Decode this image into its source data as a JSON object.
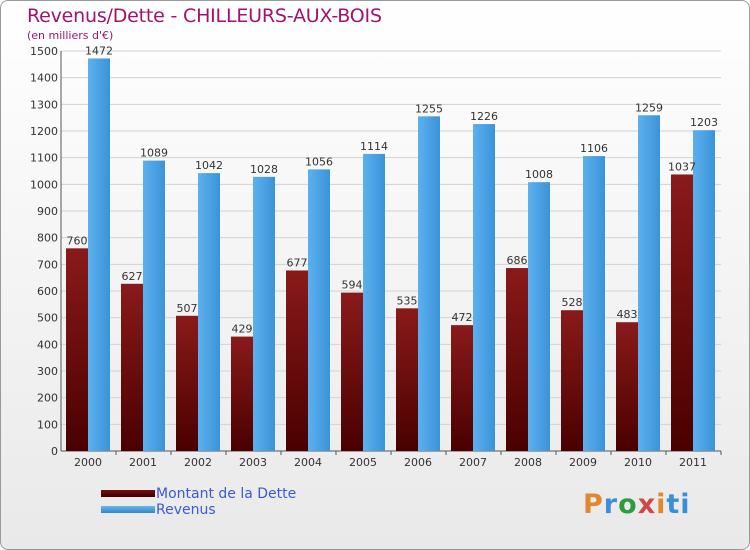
{
  "chart_data": {
    "type": "bar",
    "title": "Revenus/Dette - CHILLEURS-AUX-BOIS",
    "subtitle": "(en milliers d'€)",
    "categories": [
      "2000",
      "2001",
      "2002",
      "2003",
      "2004",
      "2005",
      "2006",
      "2007",
      "2008",
      "2009",
      "2010",
      "2011"
    ],
    "series": [
      {
        "name": "Montant de la Dette",
        "color": "#6b0a0a",
        "values": [
          760,
          627,
          507,
          429,
          677,
          594,
          535,
          472,
          686,
          528,
          483,
          1037
        ]
      },
      {
        "name": "Revenus",
        "color": "#4aa3e4",
        "values": [
          1472,
          1089,
          1042,
          1028,
          1056,
          1114,
          1255,
          1226,
          1008,
          1106,
          1259,
          1203
        ]
      }
    ],
    "ylim": [
      0,
      1500
    ],
    "yticks": [
      0,
      100,
      200,
      300,
      400,
      500,
      600,
      700,
      800,
      900,
      1000,
      1100,
      1200,
      1300,
      1400,
      1500
    ],
    "grid": true,
    "legend_position": "bottom-left"
  },
  "legend": {
    "debt_label": "Montant de la Dette",
    "revenue_label": "Revenus"
  },
  "logo": {
    "letters": [
      "P",
      "r",
      "o",
      "x",
      "i",
      "ti"
    ]
  }
}
